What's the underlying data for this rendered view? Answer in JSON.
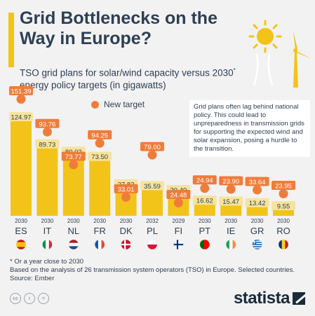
{
  "title": "Grid Bottlenecks on the Way in Europe?",
  "subtitle_main": "TSO grid plans for solar/wind capacity versus 2030",
  "subtitle_sup": "*",
  "subtitle_rest": " energy policy targets (in gigawatts)",
  "legend_label": "New target",
  "annotation": "Grid plans often lag behind national policy. This could lead to unpreparedness in transmission grids for supporting the expected wind and solar expansion, posing a hurdle to the transition.",
  "footnotes": {
    "line1": "* Or a year close to 2030",
    "line2": "Based on the analysis of 26 transmission system operators (TSO) in Europe. Selected countries.",
    "line3": "Source: Ember"
  },
  "brand": "statista",
  "colors": {
    "bar": "#f2c41a",
    "target": "#f07c3a",
    "text": "#2d3f55",
    "bg": "#f2f2f2"
  },
  "icons": [
    "wind-turbine-icon",
    "sun-icon",
    "creative-commons-icon"
  ],
  "chart_data": {
    "type": "bar",
    "categories": [
      "ES",
      "IT",
      "NL",
      "FR",
      "DK",
      "PL",
      "FI",
      "PT",
      "IE",
      "GR",
      "RO"
    ],
    "years": [
      "2030",
      "2030",
      "2030",
      "2030",
      "2030",
      "2032",
      "2029",
      "2030",
      "2030",
      "2030",
      "2030"
    ],
    "series": [
      {
        "values": [
          124.97,
          89.73,
          80.02,
          73.5,
          37.82,
          35.59,
          30.4,
          16.62,
          15.47,
          13.42,
          9.55
        ]
      },
      {
        "name": "New target",
        "values": [
          151.39,
          93.76,
          73.77,
          94.25,
          33.01,
          79.0,
          24.48,
          24.94,
          23.9,
          33.64,
          23.95
        ]
      }
    ],
    "ylim": [
      0,
      160
    ],
    "legend": "top-left",
    "grid": false
  }
}
